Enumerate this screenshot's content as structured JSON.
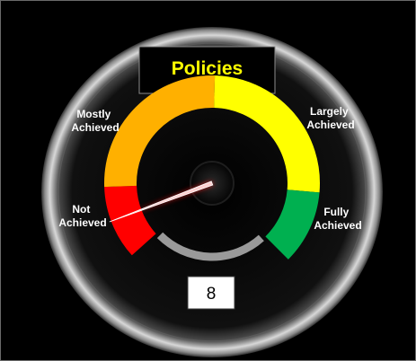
{
  "chart_data": {
    "type": "gauge",
    "title": "Policies",
    "value": 8,
    "value_display": "8",
    "range": [
      0,
      100
    ],
    "bands": [
      {
        "name": "Not Achieved",
        "label_lines": [
          "Not",
          "Achieved"
        ],
        "from": 0,
        "to": 15,
        "color": "#ff0000"
      },
      {
        "name": "Mostly Achieved",
        "label_lines": [
          "Mostly",
          "Achieved"
        ],
        "from": 15,
        "to": 50,
        "color": "#ffb000"
      },
      {
        "name": "Largely Achieved",
        "label_lines": [
          "Largely",
          "Achieved"
        ],
        "from": 50,
        "to": 85,
        "color": "#ffff00"
      },
      {
        "name": "Fully Achieved",
        "label_lines": [
          "Fully",
          "Achieved"
        ],
        "from": 85,
        "to": 100,
        "color": "#00b050"
      }
    ]
  },
  "colors": {
    "background": "#000000",
    "title": "#ffff00",
    "needle": "#ff2020",
    "value_box": "#ffffff"
  }
}
